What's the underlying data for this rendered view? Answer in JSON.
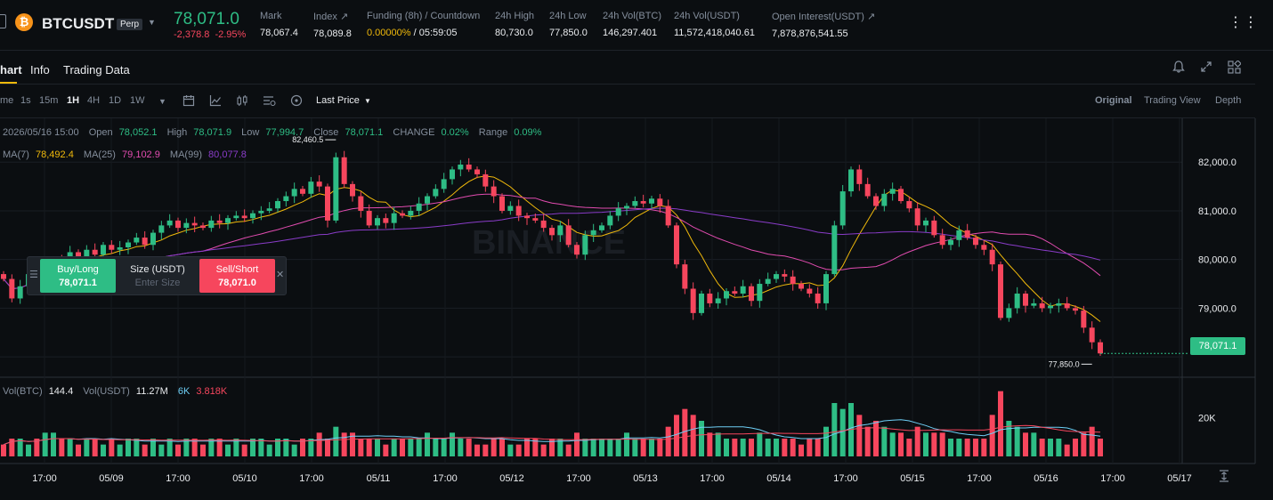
{
  "ticker": {
    "coin_glyph": "₿",
    "symbol": "BTCUSDT",
    "badge": "Perp",
    "last_price": "78,071.0",
    "change_abs": "-2,378.8",
    "change_pct": "-2.95%",
    "stats": [
      {
        "label": "Mark",
        "value": "78,067.4"
      },
      {
        "label": "Index ↗",
        "value": "78,089.8"
      },
      {
        "label": "Funding (8h) / Countdown",
        "value_rate": "0.00000%",
        "value_countdown": "/ 05:59:05"
      },
      {
        "label": "24h High",
        "value": "80,730.0"
      },
      {
        "label": "24h Low",
        "value": "77,850.0"
      },
      {
        "label": "24h Vol(BTC)",
        "value": "146,297.401"
      },
      {
        "label": "24h Vol(USDT)",
        "value": "11,572,418,040.61"
      },
      {
        "label": "Open Interest(USDT) ↗",
        "value": "7,878,876,541.55"
      }
    ],
    "more_glyph": "⋮⋮"
  },
  "tabs": [
    "hart",
    "Info",
    "Trading Data"
  ],
  "toolbar": {
    "intervals": [
      "me",
      "1s",
      "15m",
      "1H",
      "4H",
      "1D",
      "1W"
    ],
    "active_interval": "1H",
    "price_type": "Last Price",
    "views": [
      "Original",
      "Trading View",
      "Depth"
    ],
    "active_view": "Original"
  },
  "legend": {
    "date": "2026/05/16 15:00",
    "open_label": "Open",
    "open": "78,052.1",
    "high_label": "High",
    "high": "78,071.9",
    "low_label": "Low",
    "low": "77,994.7",
    "close_label": "Close",
    "close": "78,071.1",
    "change_label": "CHANGE",
    "change": "0.02%",
    "range_label": "Range",
    "range": "0.09%",
    "ma7_label": "MA(7)",
    "ma7": "78,492.4",
    "ma25_label": "MA(25)",
    "ma25": "79,102.9",
    "ma99_label": "MA(99)",
    "ma99": "80,077.8",
    "vol_btc_label": "Vol(BTC)",
    "vol_btc": "144.4",
    "vol_usdt_label": "Vol(USDT)",
    "vol_usdt": "11.27M",
    "vol_ma_a": "6K",
    "vol_ma_b": "3.818K"
  },
  "order_panel": {
    "buy_label": "Buy/Long",
    "buy_price": "78,071.1",
    "size_label": "Size (USDT)",
    "size_placeholder": "Enter Size",
    "sell_label": "Sell/Short",
    "sell_price": "78,071.0"
  },
  "watermark": "BINANCE",
  "chart_data": {
    "type": "candlestick",
    "price_axis": [
      "82,000.0",
      "81,000.0",
      "80,000.0",
      "79,000.0"
    ],
    "price_ticks": [
      82000,
      81000,
      80000,
      79000
    ],
    "volume_axis": [
      "20K"
    ],
    "x_ticks": [
      "17:00",
      "05/09",
      "17:00",
      "05/10",
      "17:00",
      "05/11",
      "17:00",
      "05/12",
      "17:00",
      "05/13",
      "17:00",
      "05/14",
      "17:00",
      "05/15",
      "17:00",
      "05/16",
      "17:00",
      "05/17"
    ],
    "last_price": "78,071.1",
    "max_marker": "82,460.5",
    "min_marker": "77,850.0",
    "ylim": [
      77600,
      82900
    ],
    "colors": {
      "up": "#2ebd85",
      "down": "#f6465d",
      "ma7": "#f0b90b",
      "ma25": "#e24cb0",
      "ma99": "#8a3cc9",
      "volma": "#6ecff6"
    },
    "close_series": [
      79600,
      79200,
      79450,
      79700,
      79500,
      79900,
      80000,
      79850,
      80150,
      80050,
      80200,
      80100,
      80300,
      80200,
      80250,
      80350,
      80450,
      80300,
      80550,
      80700,
      80800,
      80650,
      80750,
      80700,
      80650,
      80800,
      80750,
      80850,
      80900,
      80850,
      80950,
      81000,
      81050,
      81200,
      81300,
      81450,
      81350,
      81600,
      81500,
      80800,
      82100,
      81550,
      81300,
      81000,
      80700,
      80850,
      80750,
      80950,
      80900,
      81000,
      81150,
      81300,
      81450,
      81650,
      81850,
      81950,
      81850,
      81750,
      81500,
      81300,
      81000,
      81100,
      80900,
      80850,
      80800,
      80650,
      80500,
      80700,
      80300,
      80100,
      80500,
      80600,
      80700,
      80900,
      81050,
      81100,
      81200,
      81150,
      81250,
      81100,
      80700,
      79900,
      79400,
      78900,
      79300,
      79100,
      79200,
      79350,
      79300,
      79450,
      79150,
      79500,
      79600,
      79700,
      79650,
      79500,
      79400,
      79300,
      79100,
      79700,
      80700,
      81400,
      81850,
      81550,
      81300,
      81100,
      81350,
      81450,
      81200,
      81050,
      80700,
      80800,
      80500,
      80300,
      80400,
      80600,
      80450,
      80300,
      80200,
      79900,
      78800,
      79000,
      79300,
      79050,
      79100,
      79000,
      79050,
      79100,
      79000,
      78950,
      78600,
      78300,
      78071
    ],
    "volumes": [
      2,
      3,
      3,
      2,
      3,
      4,
      4,
      3,
      3,
      2,
      3,
      3,
      2,
      3,
      2,
      3,
      3,
      2,
      3,
      2,
      3,
      2,
      3,
      3,
      2,
      3,
      3,
      2,
      3,
      2,
      3,
      3,
      2,
      3,
      3,
      2,
      3,
      3,
      4,
      3,
      5,
      4,
      4,
      3,
      3,
      3,
      2,
      3,
      3,
      3,
      3,
      4,
      3,
      3,
      4,
      3,
      3,
      2,
      2,
      3,
      3,
      2,
      2,
      3,
      3,
      2,
      3,
      3,
      2,
      4,
      3,
      3,
      3,
      3,
      3,
      4,
      3,
      3,
      3,
      3,
      5,
      7,
      8,
      7,
      6,
      4,
      4,
      3,
      3,
      3,
      3,
      4,
      3,
      3,
      3,
      3,
      2,
      3,
      3,
      5,
      9,
      8,
      9,
      7,
      5,
      6,
      5,
      4,
      4,
      3,
      5,
      4,
      4,
      4,
      3,
      3,
      3,
      3,
      3,
      7,
      11,
      6,
      5,
      4,
      4,
      3,
      3,
      3,
      2,
      3,
      4,
      5,
      3
    ]
  }
}
